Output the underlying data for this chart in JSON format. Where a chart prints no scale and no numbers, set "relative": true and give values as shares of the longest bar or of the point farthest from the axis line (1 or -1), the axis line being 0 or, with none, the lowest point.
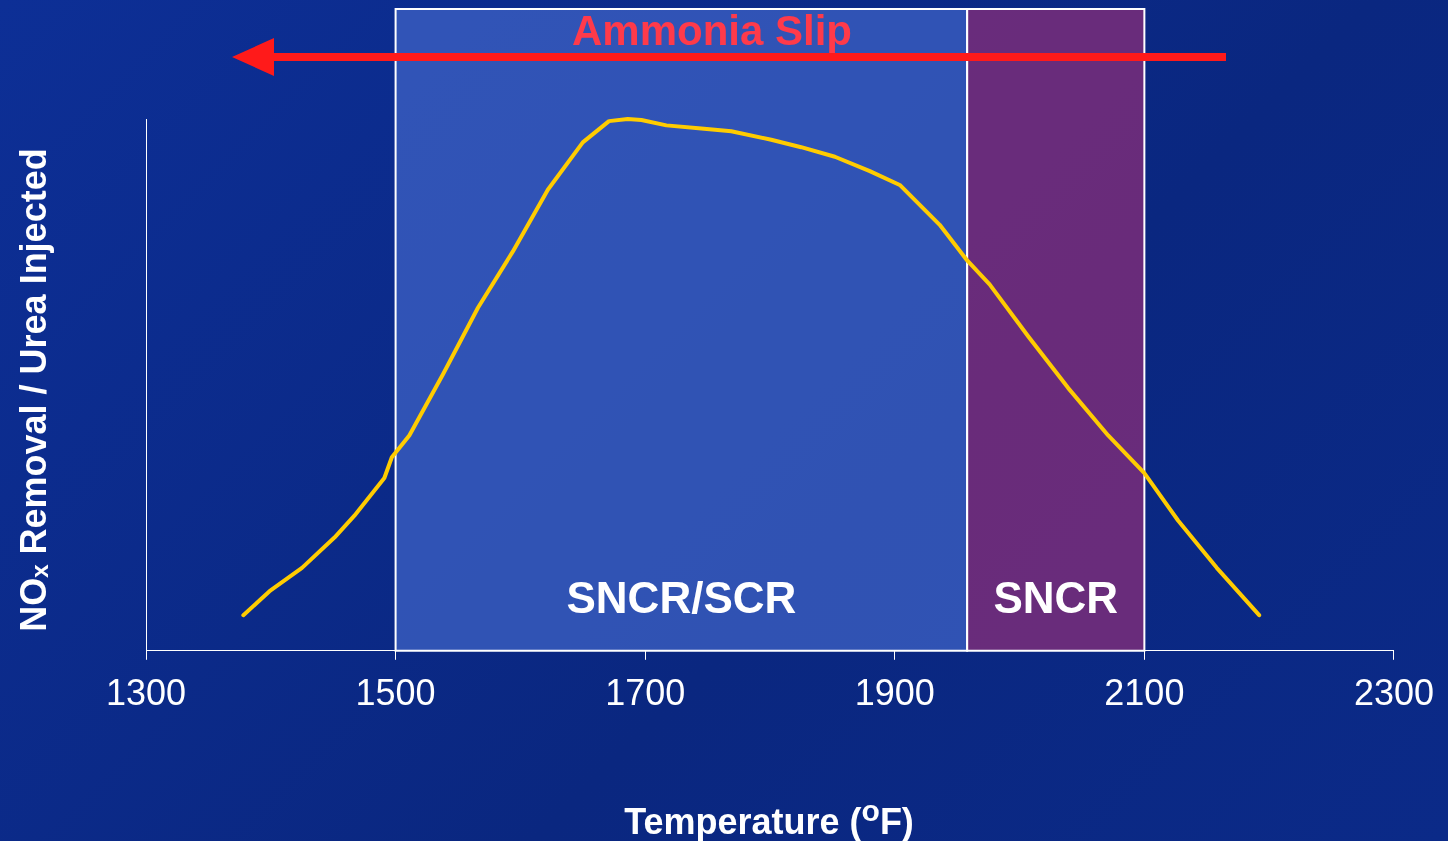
{
  "chart_data": {
    "type": "line",
    "relative": true,
    "xlabel": "Temperature ($^{o}$F)",
    "ylabel": "NOₓ Removal / Urea Injected",
    "xlim": [
      1300,
      2300
    ],
    "xticks": [
      1300,
      1500,
      1700,
      1900,
      2100,
      2300
    ],
    "marker": "none",
    "annotations": [
      "Ammonia Slip"
    ],
    "bands": [
      {
        "axis": "x",
        "from": 1500,
        "to": 1958,
        "label": "SNCR/SCR",
        "color": "#3d62c4"
      },
      {
        "axis": "x",
        "from": 1958,
        "to": 2100,
        "label": "SNCR",
        "color": "#8a2e78"
      }
    ],
    "series": [
      {
        "color": "#ffcc00",
        "x": [
          1378,
          1399,
          1425,
          1451,
          1467,
          1491,
          1497,
          1511,
          1538,
          1566,
          1594,
          1622,
          1650,
          1671,
          1686,
          1697,
          1717,
          1745,
          1769,
          1801,
          1825,
          1852,
          1880,
          1904,
          1936,
          1958,
          1976,
          2007,
          2039,
          2071,
          2100,
          2127,
          2158,
          2192
        ],
        "values": [
          0.067,
          0.112,
          0.156,
          0.213,
          0.254,
          0.325,
          0.364,
          0.405,
          0.52,
          0.645,
          0.751,
          0.867,
          0.956,
          0.996,
          1,
          0.998,
          0.988,
          0.982,
          0.977,
          0.961,
          0.947,
          0.929,
          0.902,
          0.876,
          0.801,
          0.734,
          0.689,
          0.591,
          0.494,
          0.405,
          0.334,
          0.245,
          0.156,
          0.067
        ]
      }
    ]
  }
}
